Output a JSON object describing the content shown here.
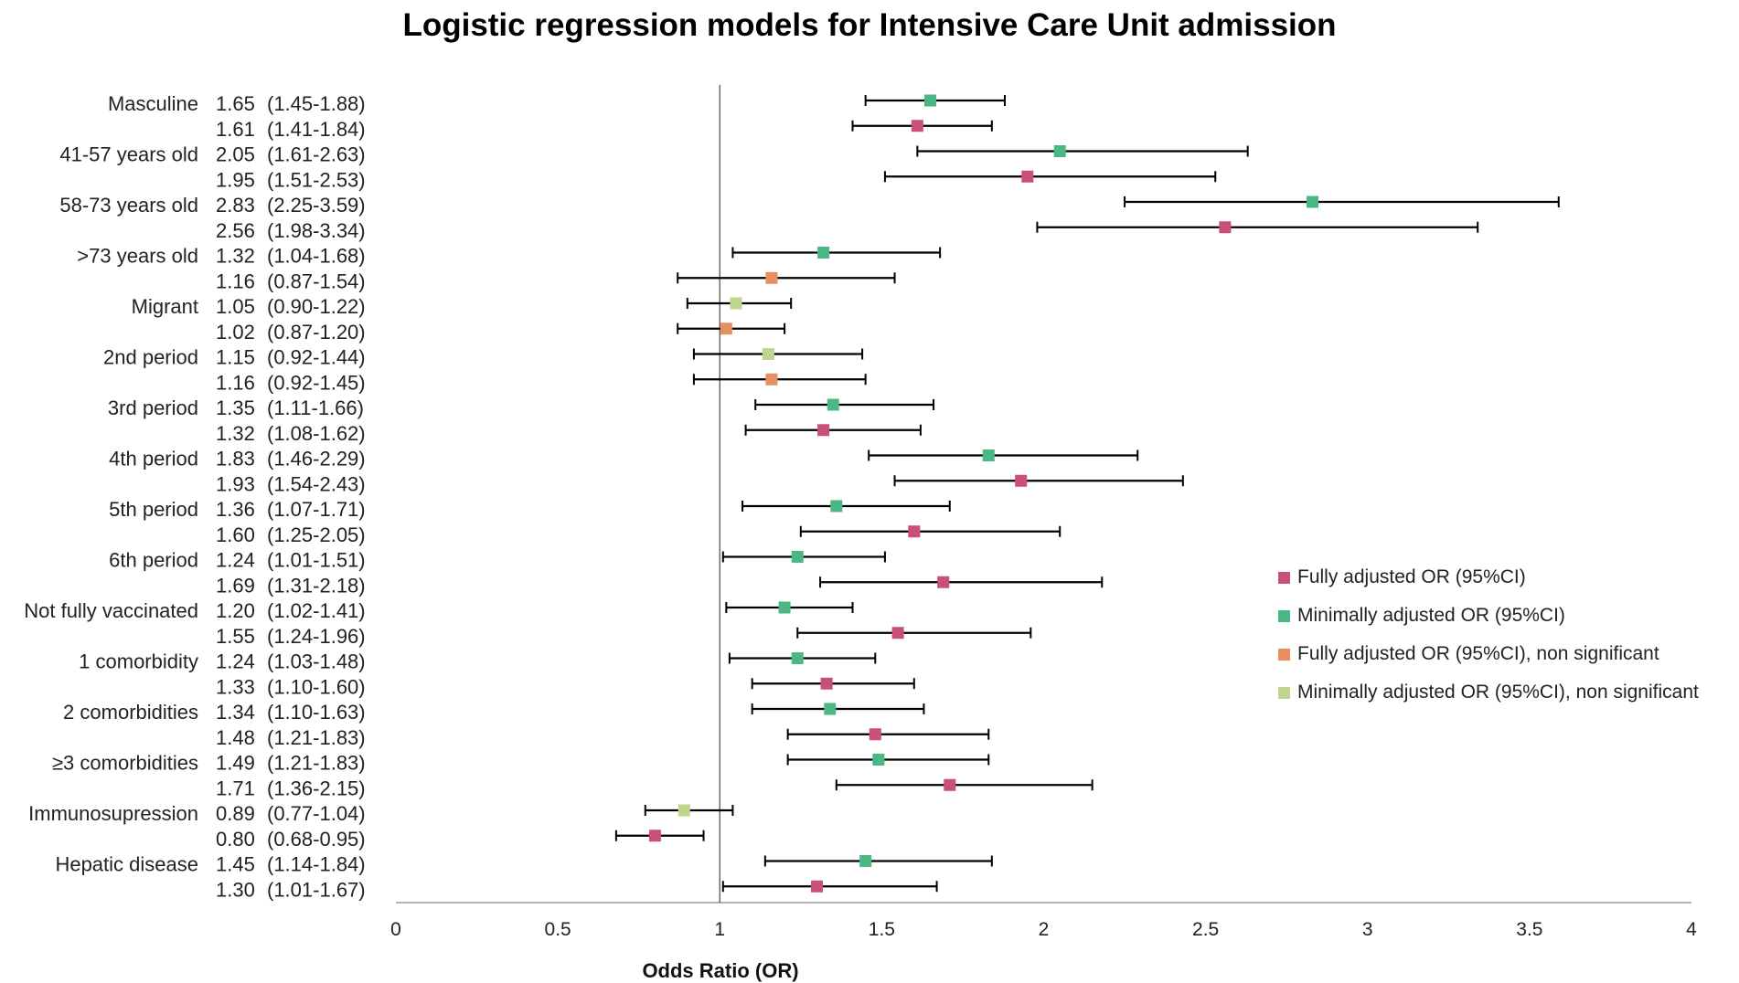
{
  "chart_data": {
    "type": "forest",
    "title": "Logistic regression models for Intensive Care Unit admission",
    "xlabel": "Odds Ratio (OR)",
    "ylabel": "",
    "xlim": [
      0,
      4
    ],
    "xticks": [
      "0",
      "0.5",
      "1",
      "1.5",
      "2",
      "2.5",
      "3",
      "3.5",
      "4"
    ],
    "reference_line": 1,
    "grid": false,
    "legend_position": "right-middle",
    "legend": [
      {
        "key": "fully",
        "label": "Fully adjusted OR (95%CI)",
        "color": "#c8507a"
      },
      {
        "key": "minimal",
        "label": "Minimally adjusted OR (95%CI)",
        "color": "#4bb883"
      },
      {
        "key": "fully_ns",
        "label": "Fully adjusted OR (95%CI), non significant",
        "color": "#e88f62"
      },
      {
        "key": "minimal_ns",
        "label": "Minimally adjusted OR (95%CI), non significant",
        "color": "#bcd68b"
      }
    ],
    "rows": [
      {
        "variable": "Masculine",
        "or": 1.65,
        "text": "1.65",
        "ci": "(1.45-1.88)",
        "low": 1.45,
        "high": 1.88,
        "series": "minimal"
      },
      {
        "variable": "",
        "or": 1.61,
        "text": "1.61",
        "ci": "(1.41-1.84)",
        "low": 1.41,
        "high": 1.84,
        "series": "fully"
      },
      {
        "variable": "41-57 years old",
        "or": 2.05,
        "text": "2.05",
        "ci": "(1.61-2.63)",
        "low": 1.61,
        "high": 2.63,
        "series": "minimal"
      },
      {
        "variable": "",
        "or": 1.95,
        "text": "1.95",
        "ci": "(1.51-2.53)",
        "low": 1.51,
        "high": 2.53,
        "series": "fully"
      },
      {
        "variable": "58-73 years old",
        "or": 2.83,
        "text": "2.83",
        "ci": "(2.25-3.59)",
        "low": 2.25,
        "high": 3.59,
        "series": "minimal"
      },
      {
        "variable": "",
        "or": 2.56,
        "text": "2.56",
        "ci": "(1.98-3.34)",
        "low": 1.98,
        "high": 3.34,
        "series": "fully"
      },
      {
        "variable": ">73 years old",
        "or": 1.32,
        "text": "1.32",
        "ci": "(1.04-1.68)",
        "low": 1.04,
        "high": 1.68,
        "series": "minimal"
      },
      {
        "variable": "",
        "or": 1.16,
        "text": "1.16",
        "ci": "(0.87-1.54)",
        "low": 0.87,
        "high": 1.54,
        "series": "fully_ns"
      },
      {
        "variable": "Migrant",
        "or": 1.05,
        "text": "1.05",
        "ci": "(0.90-1.22)",
        "low": 0.9,
        "high": 1.22,
        "series": "minimal_ns"
      },
      {
        "variable": "",
        "or": 1.02,
        "text": "1.02",
        "ci": "(0.87-1.20)",
        "low": 0.87,
        "high": 1.2,
        "series": "fully_ns"
      },
      {
        "variable": "2nd period",
        "or": 1.15,
        "text": "1.15",
        "ci": "(0.92-1.44)",
        "low": 0.92,
        "high": 1.44,
        "series": "minimal_ns"
      },
      {
        "variable": "",
        "or": 1.16,
        "text": "1.16",
        "ci": "(0.92-1.45)",
        "low": 0.92,
        "high": 1.45,
        "series": "fully_ns"
      },
      {
        "variable": "3rd period",
        "or": 1.35,
        "text": "1.35",
        "ci": "(1.11-1.66)",
        "low": 1.11,
        "high": 1.66,
        "series": "minimal"
      },
      {
        "variable": "",
        "or": 1.32,
        "text": "1.32",
        "ci": "(1.08-1.62)",
        "low": 1.08,
        "high": 1.62,
        "series": "fully"
      },
      {
        "variable": "4th period",
        "or": 1.83,
        "text": "1.83",
        "ci": "(1.46-2.29)",
        "low": 1.46,
        "high": 2.29,
        "series": "minimal"
      },
      {
        "variable": "",
        "or": 1.93,
        "text": "1.93",
        "ci": "(1.54-2.43)",
        "low": 1.54,
        "high": 2.43,
        "series": "fully"
      },
      {
        "variable": "5th period",
        "or": 1.36,
        "text": "1.36",
        "ci": "(1.07-1.71)",
        "low": 1.07,
        "high": 1.71,
        "series": "minimal"
      },
      {
        "variable": "",
        "or": 1.6,
        "text": "1.60",
        "ci": "(1.25-2.05)",
        "low": 1.25,
        "high": 2.05,
        "series": "fully"
      },
      {
        "variable": "6th period",
        "or": 1.24,
        "text": "1.24",
        "ci": "(1.01-1.51)",
        "low": 1.01,
        "high": 1.51,
        "series": "minimal"
      },
      {
        "variable": "",
        "or": 1.69,
        "text": "1.69",
        "ci": "(1.31-2.18)",
        "low": 1.31,
        "high": 2.18,
        "series": "fully"
      },
      {
        "variable": "Not fully vaccinated",
        "or": 1.2,
        "text": "1.20",
        "ci": "(1.02-1.41)",
        "low": 1.02,
        "high": 1.41,
        "series": "minimal"
      },
      {
        "variable": "",
        "or": 1.55,
        "text": "1.55",
        "ci": "(1.24-1.96)",
        "low": 1.24,
        "high": 1.96,
        "series": "fully"
      },
      {
        "variable": "1 comorbidity",
        "or": 1.24,
        "text": "1.24",
        "ci": "(1.03-1.48)",
        "low": 1.03,
        "high": 1.48,
        "series": "minimal"
      },
      {
        "variable": "",
        "or": 1.33,
        "text": "1.33",
        "ci": "(1.10-1.60)",
        "low": 1.1,
        "high": 1.6,
        "series": "fully"
      },
      {
        "variable": "2 comorbidities",
        "or": 1.34,
        "text": "1.34",
        "ci": "(1.10-1.63)",
        "low": 1.1,
        "high": 1.63,
        "series": "minimal"
      },
      {
        "variable": "",
        "or": 1.48,
        "text": "1.48",
        "ci": "(1.21-1.83)",
        "low": 1.21,
        "high": 1.83,
        "series": "fully"
      },
      {
        "variable": "≥3 comorbidities",
        "or": 1.49,
        "text": "1.49",
        "ci": "(1.21-1.83)",
        "low": 1.21,
        "high": 1.83,
        "series": "minimal"
      },
      {
        "variable": "",
        "or": 1.71,
        "text": "1.71",
        "ci": "(1.36-2.15)",
        "low": 1.36,
        "high": 2.15,
        "series": "fully"
      },
      {
        "variable": "Immunosupression",
        "or": 0.89,
        "text": "0.89",
        "ci": "(0.77-1.04)",
        "low": 0.77,
        "high": 1.04,
        "series": "minimal_ns"
      },
      {
        "variable": "",
        "or": 0.8,
        "text": "0.80",
        "ci": "(0.68-0.95)",
        "low": 0.68,
        "high": 0.95,
        "series": "fully"
      },
      {
        "variable": "Hepatic disease",
        "or": 1.45,
        "text": "1.45",
        "ci": "(1.14-1.84)",
        "low": 1.14,
        "high": 1.84,
        "series": "minimal"
      },
      {
        "variable": "",
        "or": 1.3,
        "text": "1.30",
        "ci": "(1.01-1.67)",
        "low": 1.01,
        "high": 1.67,
        "series": "fully"
      }
    ]
  }
}
